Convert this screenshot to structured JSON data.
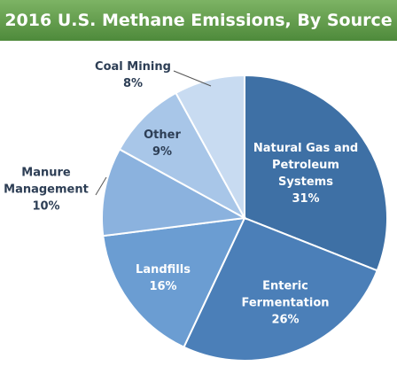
{
  "chart_data": {
    "type": "pie",
    "title": "2016 U.S. Methane Emissions, By Source",
    "categories": [
      "Natural Gas and Petroleum Systems",
      "Enteric Fermentation",
      "Landfills",
      "Manure Management",
      "Other",
      "Coal Mining"
    ],
    "values": [
      31,
      26,
      16,
      10,
      9,
      8
    ],
    "value_labels": [
      "31%",
      "26%",
      "16%",
      "10%",
      "9%",
      "8%"
    ],
    "colors": [
      "#3e70a5",
      "#4b7fb8",
      "#6b9dd2",
      "#8bb2de",
      "#a8c6e8",
      "#c8dbf1"
    ]
  }
}
